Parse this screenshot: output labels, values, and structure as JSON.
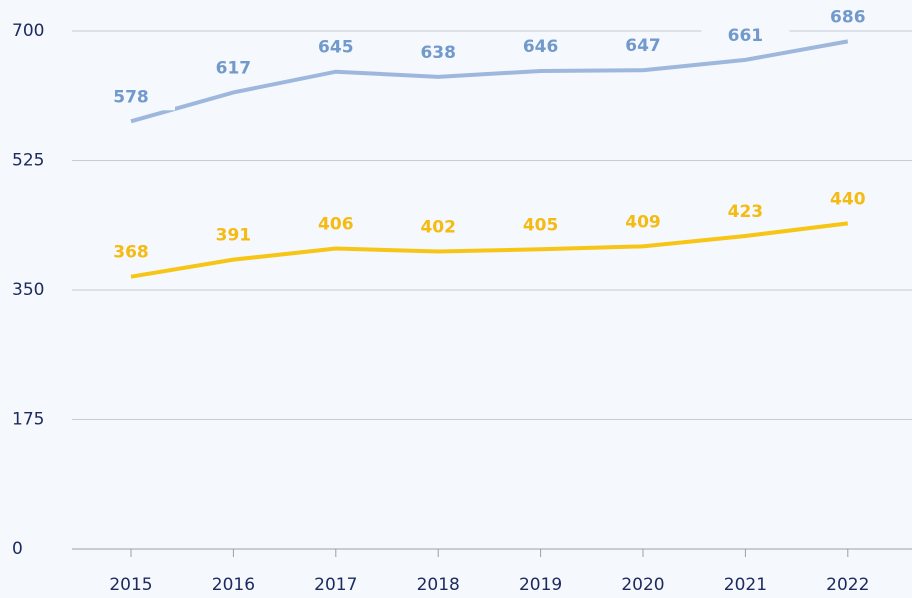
{
  "chart_data": {
    "type": "line",
    "categories": [
      "2015",
      "2016",
      "2017",
      "2018",
      "2019",
      "2020",
      "2021",
      "2022"
    ],
    "series": [
      {
        "color": "#9db8dc",
        "label_color": "#7299cb",
        "values": [
          578,
          617,
          645,
          638,
          646,
          647,
          661,
          686
        ]
      },
      {
        "color": "#f7c515",
        "label_color": "#f5bb12",
        "values": [
          368,
          391,
          406,
          402,
          405,
          409,
          423,
          440
        ]
      }
    ],
    "ylim": [
      0,
      700
    ],
    "yticks": [
      0,
      175,
      350,
      525,
      700
    ],
    "grid": true
  }
}
